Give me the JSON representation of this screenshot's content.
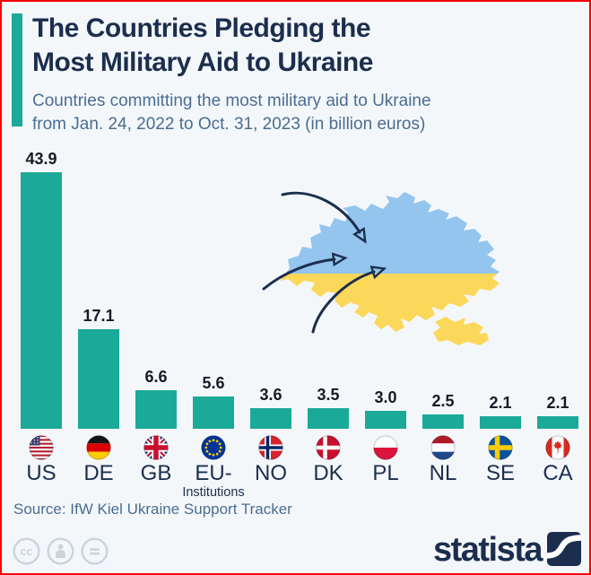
{
  "colors": {
    "background": "#f4f7fa",
    "accent_teal": "#1ba99a",
    "title_navy": "#1c2e4e",
    "subtitle_slate": "#4a6d91",
    "value_text": "#161b26",
    "map_blue": "#93c5ee",
    "map_yellow": "#fbd85a",
    "arrow_navy": "#1c2e4e",
    "license_gray": "#c9d4dd",
    "border_red": "#f80000"
  },
  "header": {
    "title_line1": "The Countries Pledging the",
    "title_line2": "Most Military Aid to Ukraine",
    "subtitle_line1": "Countries committing the most military aid to Ukraine",
    "subtitle_line2": "from Jan. 24, 2022 to Oct. 31, 2023 (in billion euros)"
  },
  "chart_data": {
    "type": "bar",
    "title": "The Countries Pledging the Most Military Aid to Ukraine",
    "subtitle": "Countries committing the most military aid to Ukraine from Jan. 24, 2022 to Oct. 31, 2023 (in billion euros)",
    "unit": "billion euros",
    "ylim": [
      0,
      45
    ],
    "grid": false,
    "legend": "none",
    "bar_color": "#1ba99a",
    "categories": [
      "US",
      "DE",
      "GB",
      "EU-Institutions",
      "NO",
      "DK",
      "PL",
      "NL",
      "SE",
      "CA"
    ],
    "values": [
      43.9,
      17.1,
      6.6,
      5.6,
      3.6,
      3.5,
      3.0,
      2.5,
      2.1,
      2.1
    ],
    "bars": [
      {
        "code": "US",
        "label": "US",
        "sublabel": "",
        "value": 43.9,
        "flag": "us-flag"
      },
      {
        "code": "DE",
        "label": "DE",
        "sublabel": "",
        "value": 17.1,
        "flag": "de-flag"
      },
      {
        "code": "GB",
        "label": "GB",
        "sublabel": "",
        "value": 6.6,
        "flag": "gb-flag"
      },
      {
        "code": "EU",
        "label": "EU-",
        "sublabel": "Institutions",
        "value": 5.6,
        "flag": "eu-flag"
      },
      {
        "code": "NO",
        "label": "NO",
        "sublabel": "",
        "value": 3.6,
        "flag": "no-flag"
      },
      {
        "code": "DK",
        "label": "DK",
        "sublabel": "",
        "value": 3.5,
        "flag": "dk-flag"
      },
      {
        "code": "PL",
        "label": "PL",
        "sublabel": "",
        "value": 3.0,
        "flag": "pl-flag"
      },
      {
        "code": "NL",
        "label": "NL",
        "sublabel": "",
        "value": 2.5,
        "flag": "nl-flag"
      },
      {
        "code": "SE",
        "label": "SE",
        "sublabel": "",
        "value": 2.1,
        "flag": "se-flag"
      },
      {
        "code": "CA",
        "label": "CA",
        "sublabel": "",
        "value": 2.1,
        "flag": "ca-flag"
      }
    ],
    "decoration": "ukraine-map-with-three-incoming-arrows"
  },
  "footer": {
    "source": "Source: IfW Kiel Ukraine Support Tracker",
    "license_icons": [
      "cc-icon",
      "attribution-person-icon",
      "no-derivatives-equals-icon"
    ],
    "brand": "statista"
  }
}
